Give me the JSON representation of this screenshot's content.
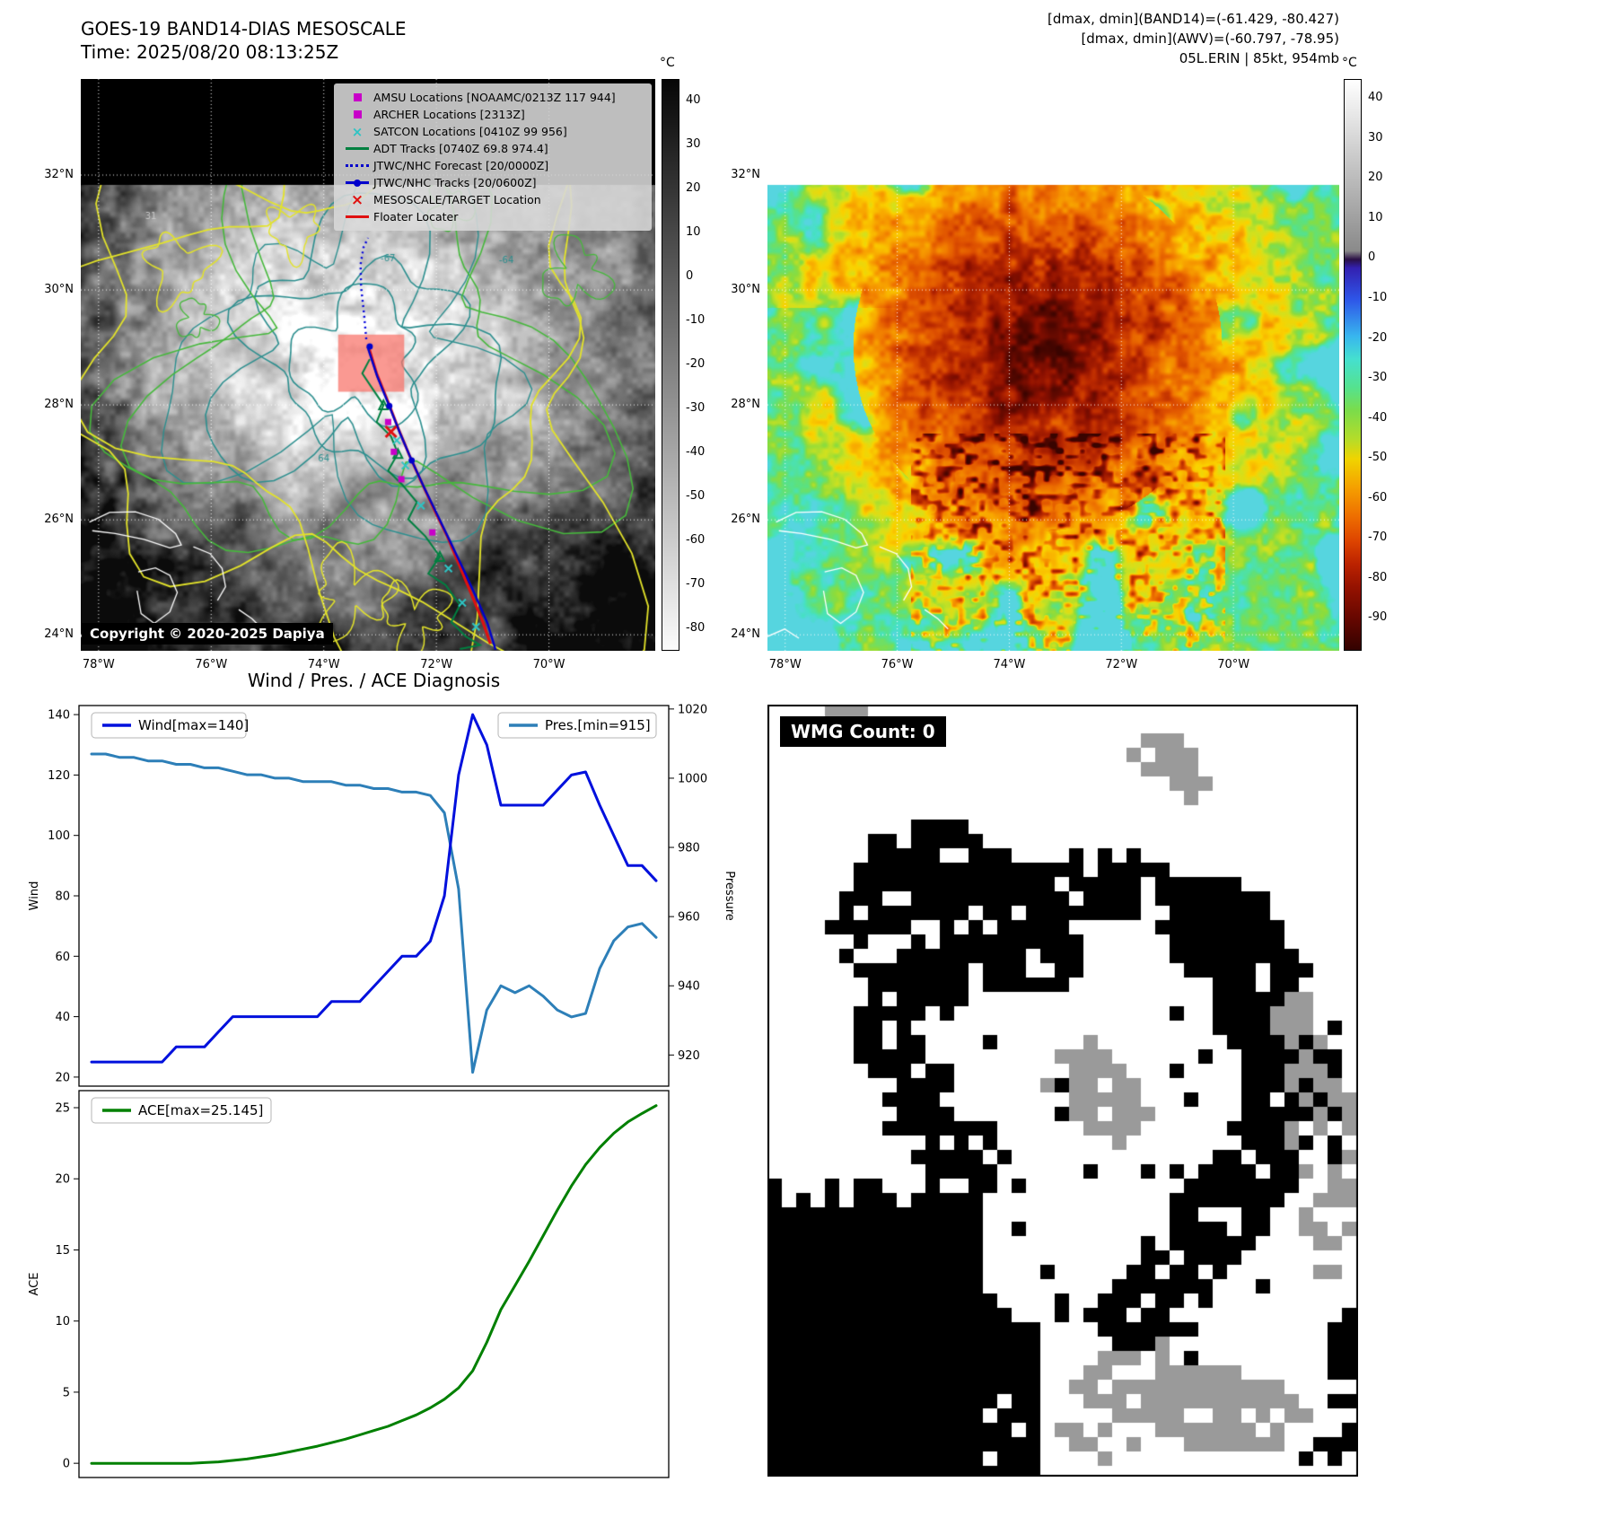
{
  "panel_tl": {
    "title": "GOES-19 BAND14-DIAS MESOSCALE",
    "subtitle": "Time: 2025/08/20 08:13:25Z",
    "copyright": "Copyright © 2020-2025 Dapiya",
    "colorbar_unit": "°C",
    "colorbar_ticks": [
      40,
      30,
      20,
      10,
      0,
      -10,
      -20,
      -30,
      -40,
      -50,
      -60,
      -70,
      -80
    ],
    "x_ticks": [
      "78°W",
      "76°W",
      "74°W",
      "72°W",
      "70°W"
    ],
    "y_ticks": [
      "32°N",
      "30°N",
      "28°N",
      "26°N",
      "24°N"
    ],
    "contour_labels": [
      "31",
      "-67",
      "-64",
      "64"
    ],
    "legend": [
      {
        "label": "AMSU Locations [NOAAMC/0213Z 117 944]",
        "marker": "square",
        "color": "#c800c8"
      },
      {
        "label": "ARCHER Locations [2313Z]",
        "marker": "square",
        "color": "#c800c8"
      },
      {
        "label": "SATCON Locations [0410Z 99 956]",
        "marker": "x",
        "color": "#2ec4c4"
      },
      {
        "label": "ADT Tracks [0740Z 69.8 974.4]",
        "marker": "line",
        "color": "#008040"
      },
      {
        "label": "JTWC/NHC Forecast [20/0000Z]",
        "marker": "dotted",
        "color": "#0000cc"
      },
      {
        "label": "JTWC/NHC Tracks [20/0600Z]",
        "marker": "line-dot",
        "color": "#0000cc"
      },
      {
        "label": "MESOSCALE/TARGET Location",
        "marker": "x-bold",
        "color": "#e01010"
      },
      {
        "label": "Floater Locater",
        "marker": "line",
        "color": "#e01010"
      }
    ]
  },
  "panel_tr": {
    "header_line1": "[dmax, dmin](BAND14)=(-61.429, -80.427)",
    "header_line2": "[dmax, dmin](AWV)=(-60.797, -78.95)",
    "header_line3": "05L.ERIN | 85kt, 954mb",
    "colorbar_unit": "°C",
    "colorbar_ticks": [
      40,
      30,
      20,
      10,
      0,
      -10,
      -20,
      -30,
      -40,
      -50,
      -60,
      -70,
      -80,
      -90
    ],
    "x_ticks": [
      "78°W",
      "76°W",
      "74°W",
      "72°W",
      "70°W"
    ],
    "y_ticks": [
      "32°N",
      "30°N",
      "28°N",
      "26°N",
      "24°N"
    ]
  },
  "panel_br": {
    "wmg_label": "WMG Count: 0"
  },
  "colors": {
    "adt_track": "#008040",
    "jtwc_track": "#0000cc",
    "forecast_track": "#0000dd",
    "floater": "#e01010",
    "amsu": "#c800c8",
    "satcon": "#2ec4c4",
    "target_patch": "#f87268",
    "grid": "#ffffff"
  },
  "chart_data": {
    "type": "line",
    "title": "Wind / Pres. / ACE Diagnosis",
    "wind_pres": {
      "ylabel_left": "Wind",
      "ylabel_right": "Pressure",
      "yticks_left": [
        20,
        40,
        60,
        80,
        100,
        120,
        140
      ],
      "yticks_right": [
        920,
        940,
        960,
        980,
        1000,
        1020
      ],
      "ylim_left": [
        17,
        143
      ],
      "ylim_right": [
        911,
        1021
      ],
      "series": [
        {
          "name": "Wind[max=140]",
          "color": "#0010dd",
          "axis": "left",
          "values": [
            25,
            25,
            25,
            25,
            25,
            25,
            30,
            30,
            30,
            35,
            40,
            40,
            40,
            40,
            40,
            40,
            40,
            45,
            45,
            45,
            50,
            55,
            60,
            60,
            65,
            80,
            120,
            140,
            130,
            110,
            110,
            110,
            110,
            115,
            120,
            121,
            110,
            100,
            90,
            90,
            85
          ]
        },
        {
          "name": "Pres.[min=915]",
          "color": "#2d7fb8",
          "axis": "right",
          "values": [
            1007,
            1007,
            1006,
            1006,
            1005,
            1005,
            1004,
            1004,
            1003,
            1003,
            1002,
            1001,
            1001,
            1000,
            1000,
            999,
            999,
            999,
            998,
            998,
            997,
            997,
            996,
            996,
            995,
            990,
            968,
            915,
            933,
            940,
            938,
            940,
            937,
            933,
            931,
            932,
            945,
            953,
            957,
            958,
            954
          ]
        }
      ]
    },
    "ace": {
      "ylabel": "ACE",
      "yticks": [
        0,
        5,
        10,
        15,
        20,
        25
      ],
      "ylim": [
        -1,
        26.2
      ],
      "series": [
        {
          "name": "ACE[max=25.145]",
          "color": "#008000",
          "values": [
            0,
            0,
            0,
            0,
            0,
            0,
            0,
            0,
            0.05,
            0.1,
            0.2,
            0.3,
            0.45,
            0.6,
            0.8,
            1.0,
            1.2,
            1.45,
            1.7,
            2.0,
            2.3,
            2.6,
            3.0,
            3.4,
            3.9,
            4.5,
            5.3,
            6.5,
            8.5,
            10.8,
            12.5,
            14.2,
            16.0,
            17.8,
            19.5,
            21.0,
            22.2,
            23.2,
            24.0,
            24.6,
            25.145
          ]
        }
      ]
    }
  }
}
